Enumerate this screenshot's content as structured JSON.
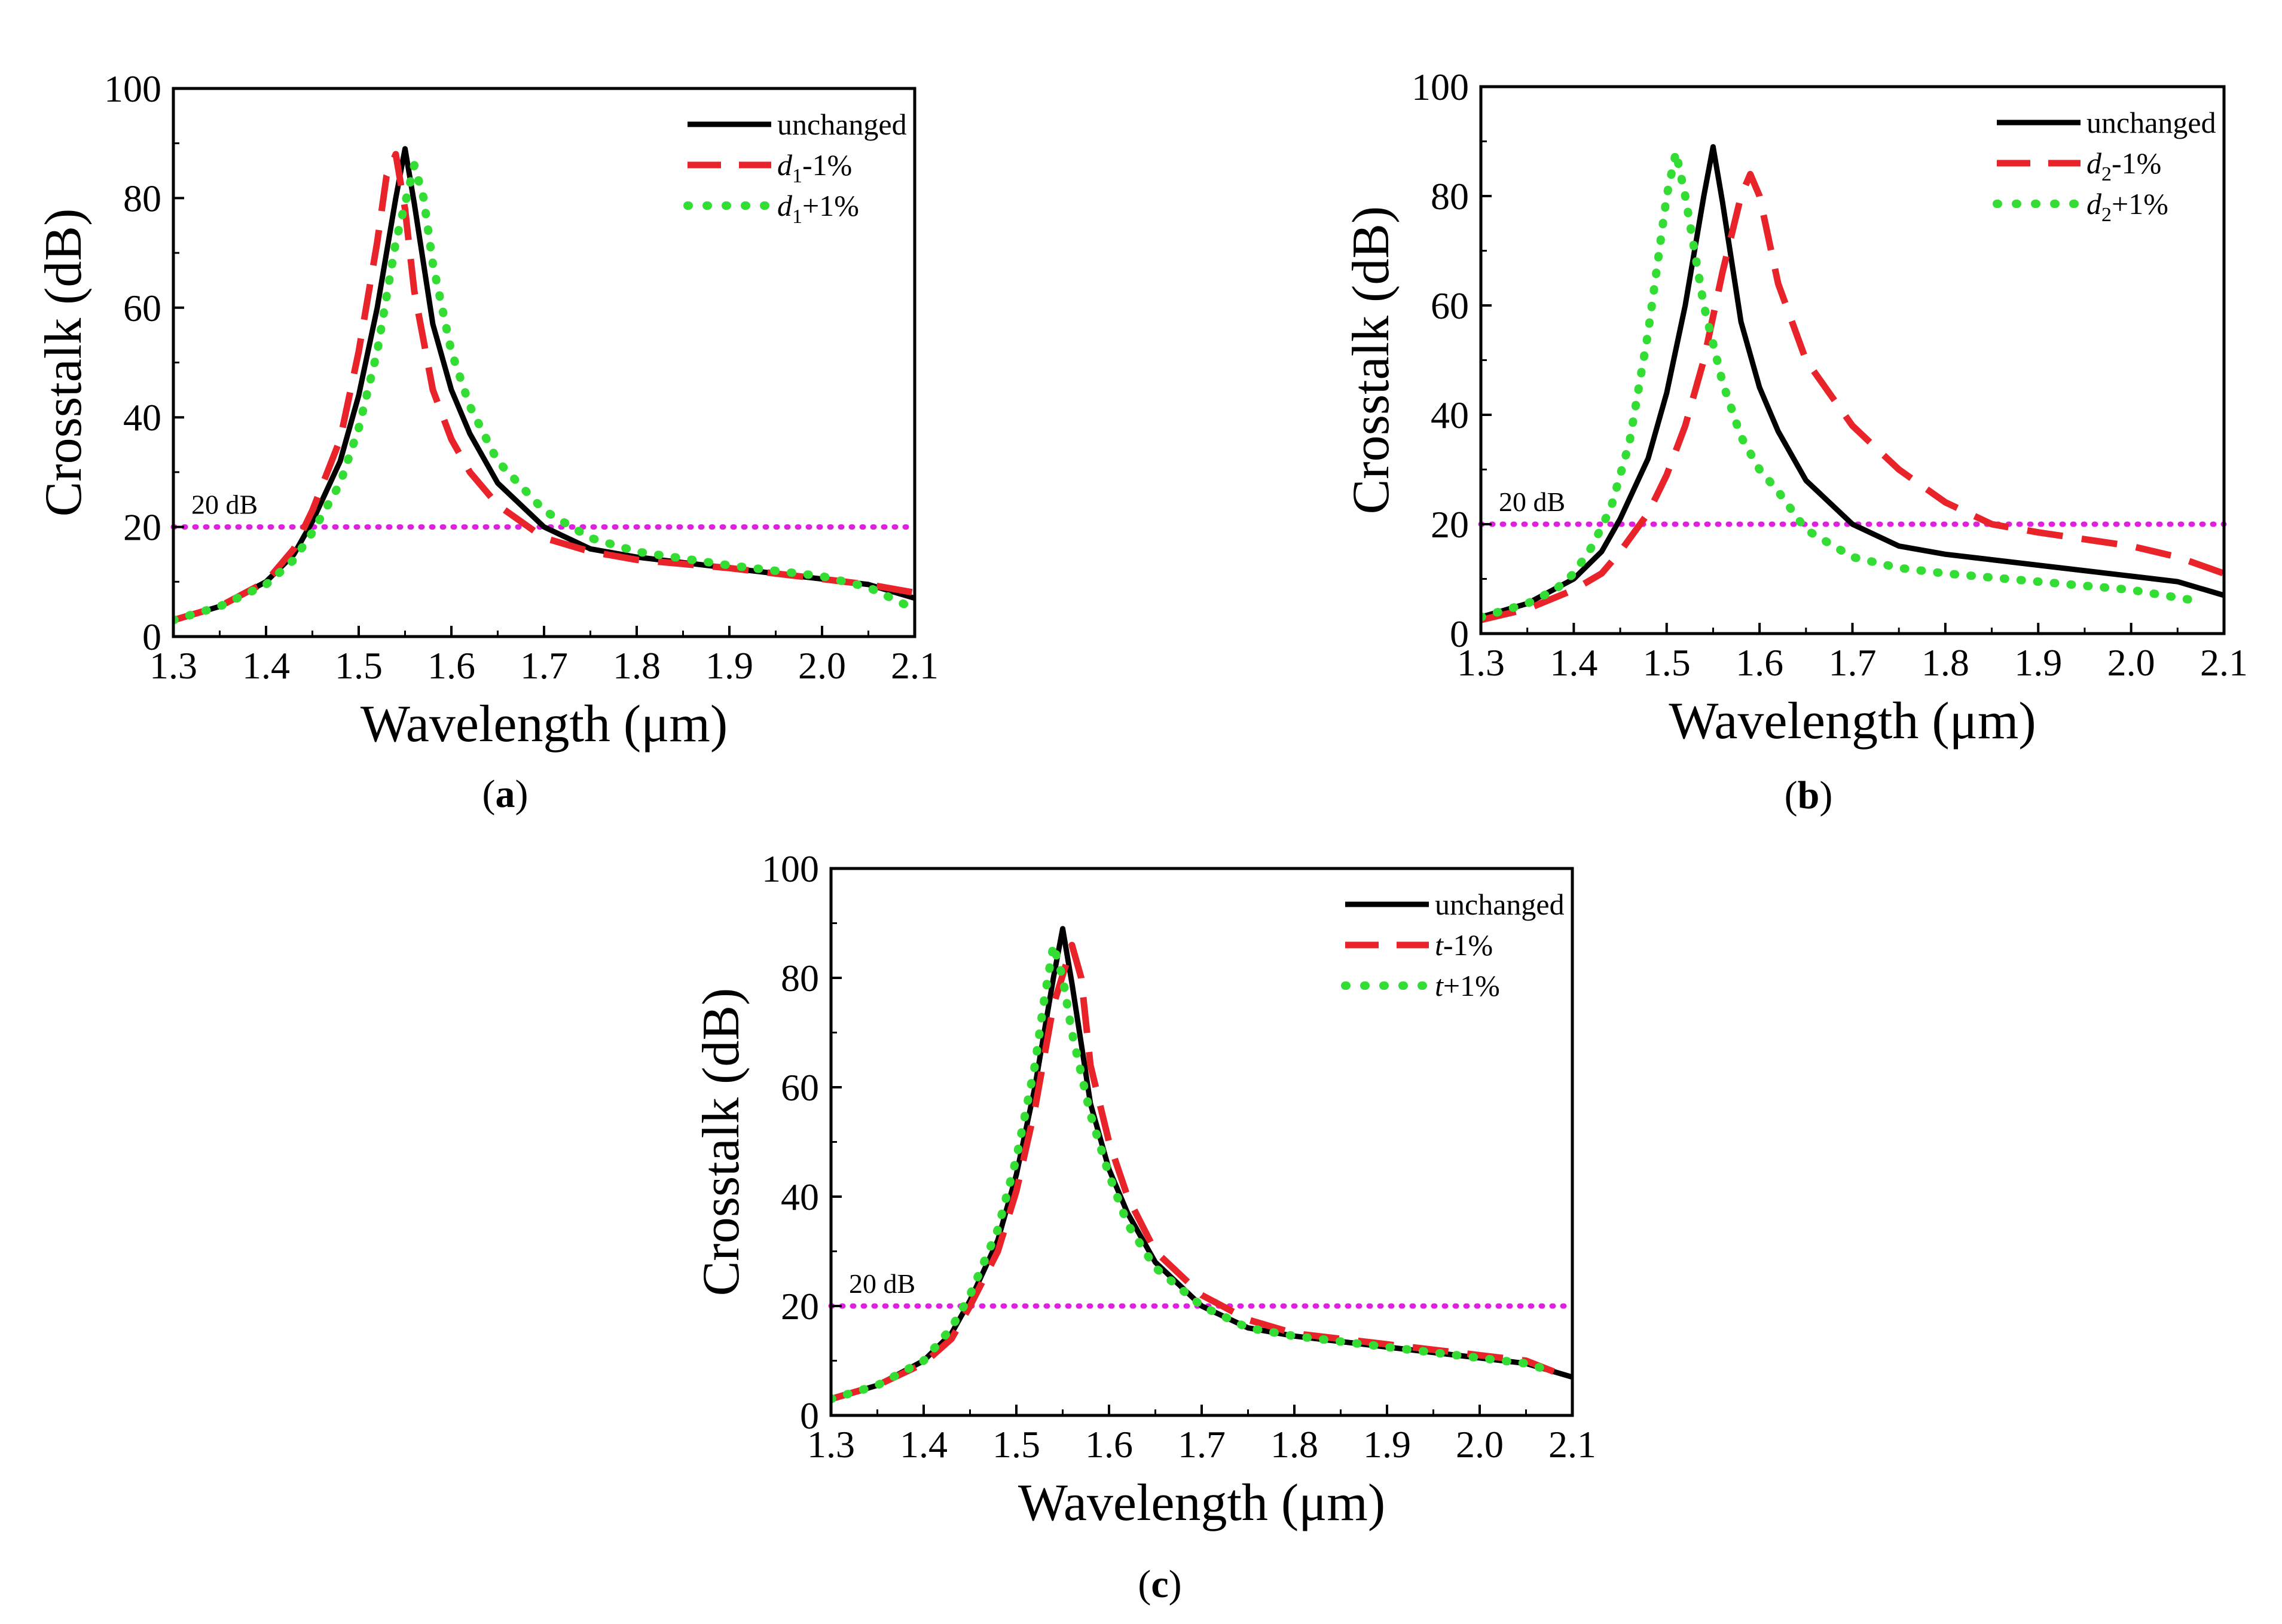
{
  "figure": {
    "panels": [
      {
        "id": "a",
        "label": "a"
      },
      {
        "id": "b",
        "label": "b"
      },
      {
        "id": "c",
        "label": "c"
      }
    ]
  },
  "chart_data": [
    {
      "type": "line",
      "panel": "a",
      "xlabel": "Wavelength (μm)",
      "ylabel": "Crosstalk (dB)",
      "xlim": [
        1.3,
        2.1
      ],
      "ylim": [
        0,
        100
      ],
      "xticks": [
        "1.3",
        "1.4",
        "1.5",
        "1.6",
        "1.7",
        "1.8",
        "1.9",
        "2.0",
        "2.1"
      ],
      "yticks": [
        "0",
        "20",
        "40",
        "60",
        "80",
        "100"
      ],
      "reference_line": {
        "y": 20,
        "label": "20 dB",
        "color": "#e020e0",
        "style": "dotted"
      },
      "legend_position": "top-right",
      "series": [
        {
          "name": "unchanged",
          "legend": {
            "var": "",
            "sub": "",
            "suffix": "unchanged"
          },
          "color": "#000000",
          "style": "solid",
          "x": [
            1.3,
            1.35,
            1.4,
            1.43,
            1.45,
            1.48,
            1.5,
            1.52,
            1.54,
            1.55,
            1.56,
            1.58,
            1.6,
            1.62,
            1.65,
            1.7,
            1.75,
            1.8,
            1.9,
            2.0,
            2.05,
            2.1
          ],
          "y": [
            3,
            5.5,
            10,
            15,
            21,
            32,
            44,
            60,
            80,
            89,
            79,
            57,
            45,
            37,
            28,
            20,
            16,
            14.5,
            12.5,
            10.5,
            9.5,
            7
          ]
        },
        {
          "name": "d1-1%",
          "legend": {
            "var": "d",
            "sub": "1",
            "suffix": "-1%"
          },
          "color": "#e8242a",
          "style": "dashed",
          "x": [
            1.3,
            1.35,
            1.4,
            1.43,
            1.45,
            1.48,
            1.5,
            1.52,
            1.53,
            1.54,
            1.55,
            1.56,
            1.58,
            1.6,
            1.62,
            1.65,
            1.7,
            1.75,
            1.8,
            1.9,
            2.0,
            2.05,
            2.1
          ],
          "y": [
            3,
            5.5,
            10,
            16,
            23,
            36,
            52,
            72,
            84,
            88,
            78,
            63,
            45,
            36,
            30,
            24,
            18,
            15.5,
            14,
            12.5,
            10.5,
            9.5,
            8
          ]
        },
        {
          "name": "d1+1%",
          "legend": {
            "var": "d",
            "sub": "1",
            "suffix": "+1%"
          },
          "color": "#33dd33",
          "style": "dotted",
          "x": [
            1.3,
            1.35,
            1.4,
            1.43,
            1.45,
            1.48,
            1.5,
            1.52,
            1.54,
            1.56,
            1.57,
            1.58,
            1.6,
            1.62,
            1.65,
            1.7,
            1.75,
            1.8,
            1.9,
            2.0,
            2.05,
            2.1
          ],
          "y": [
            3,
            5.5,
            9.5,
            14,
            19,
            28,
            38,
            52,
            72,
            86,
            80,
            68,
            52,
            42,
            32,
            23,
            18,
            15.5,
            13,
            11,
            9,
            5
          ]
        }
      ]
    },
    {
      "type": "line",
      "panel": "b",
      "xlabel": "Wavelength (μm)",
      "ylabel": "Crosstalk (dB)",
      "xlim": [
        1.3,
        2.1
      ],
      "ylim": [
        0,
        100
      ],
      "xticks": [
        "1.3",
        "1.4",
        "1.5",
        "1.6",
        "1.7",
        "1.8",
        "1.9",
        "2.0",
        "2.1"
      ],
      "yticks": [
        "0",
        "20",
        "40",
        "60",
        "80",
        "100"
      ],
      "reference_line": {
        "y": 20,
        "label": "20 dB",
        "color": "#e020e0",
        "style": "dotted"
      },
      "legend_position": "top-right",
      "series": [
        {
          "name": "unchanged",
          "legend": {
            "var": "",
            "sub": "",
            "suffix": "unchanged"
          },
          "color": "#000000",
          "style": "solid",
          "x": [
            1.3,
            1.35,
            1.4,
            1.43,
            1.45,
            1.48,
            1.5,
            1.52,
            1.54,
            1.55,
            1.56,
            1.58,
            1.6,
            1.62,
            1.65,
            1.7,
            1.75,
            1.8,
            1.9,
            2.0,
            2.05,
            2.1
          ],
          "y": [
            3,
            5.5,
            10,
            15,
            21,
            32,
            44,
            60,
            80,
            89,
            79,
            57,
            45,
            37,
            28,
            20,
            16,
            14.5,
            12.5,
            10.5,
            9.5,
            7
          ]
        },
        {
          "name": "d2-1%",
          "legend": {
            "var": "d",
            "sub": "2",
            "suffix": "-1%"
          },
          "color": "#e8242a",
          "style": "dashed",
          "x": [
            1.3,
            1.35,
            1.4,
            1.43,
            1.45,
            1.48,
            1.5,
            1.52,
            1.54,
            1.56,
            1.58,
            1.59,
            1.6,
            1.62,
            1.65,
            1.7,
            1.75,
            1.8,
            1.85,
            1.9,
            2.0,
            2.05,
            2.1
          ],
          "y": [
            2.5,
            4.5,
            8,
            11,
            15,
            22,
            29,
            38,
            50,
            66,
            80,
            84,
            80,
            64,
            50,
            38,
            30,
            24,
            20,
            18.5,
            16,
            14,
            11
          ]
        },
        {
          "name": "d2+1%",
          "legend": {
            "var": "d",
            "sub": "2",
            "suffix": "+1%"
          },
          "color": "#33dd33",
          "style": "dotted",
          "x": [
            1.3,
            1.35,
            1.38,
            1.4,
            1.42,
            1.44,
            1.46,
            1.48,
            1.5,
            1.51,
            1.52,
            1.54,
            1.56,
            1.58,
            1.6,
            1.62,
            1.65,
            1.7,
            1.75,
            1.8,
            1.9,
            2.0,
            2.07
          ],
          "y": [
            3,
            5.5,
            8,
            11,
            16,
            23,
            35,
            55,
            80,
            88,
            80,
            60,
            46,
            36,
            30,
            26,
            19,
            14,
            12,
            11,
            9.5,
            8,
            6
          ]
        }
      ]
    },
    {
      "type": "line",
      "panel": "c",
      "xlabel": "Wavelength (μm)",
      "ylabel": "Crosstalk (dB)",
      "xlim": [
        1.3,
        2.1
      ],
      "ylim": [
        0,
        100
      ],
      "xticks": [
        "1.3",
        "1.4",
        "1.5",
        "1.6",
        "1.7",
        "1.8",
        "1.9",
        "2.0",
        "2.1"
      ],
      "yticks": [
        "0",
        "20",
        "40",
        "60",
        "80",
        "100"
      ],
      "reference_line": {
        "y": 20,
        "label": "20 dB",
        "color": "#e020e0",
        "style": "dotted"
      },
      "legend_position": "top-right",
      "series": [
        {
          "name": "unchanged",
          "legend": {
            "var": "",
            "sub": "",
            "suffix": "unchanged"
          },
          "color": "#000000",
          "style": "solid",
          "x": [
            1.3,
            1.35,
            1.4,
            1.43,
            1.45,
            1.48,
            1.5,
            1.52,
            1.54,
            1.55,
            1.56,
            1.58,
            1.6,
            1.62,
            1.65,
            1.7,
            1.75,
            1.8,
            1.9,
            2.0,
            2.05,
            2.1
          ],
          "y": [
            3,
            5.5,
            10,
            15,
            21,
            32,
            44,
            60,
            80,
            89,
            79,
            57,
            45,
            37,
            28,
            20,
            16,
            14.5,
            12.5,
            10.5,
            9.5,
            7
          ]
        },
        {
          "name": "t-1%",
          "legend": {
            "var": "t",
            "sub": "",
            "suffix": "-1%"
          },
          "color": "#e8242a",
          "style": "dashed",
          "x": [
            1.3,
            1.35,
            1.4,
            1.43,
            1.45,
            1.48,
            1.5,
            1.52,
            1.54,
            1.56,
            1.57,
            1.58,
            1.6,
            1.62,
            1.65,
            1.7,
            1.75,
            1.8,
            1.9,
            2.0,
            2.05,
            2.08
          ],
          "y": [
            3,
            5.5,
            9.5,
            14,
            20,
            30,
            41,
            56,
            75,
            86,
            80,
            64,
            50,
            40,
            30,
            22,
            17.5,
            15,
            13,
            11,
            10,
            8
          ]
        },
        {
          "name": "t+1%",
          "legend": {
            "var": "t",
            "sub": "",
            "suffix": "+1%"
          },
          "color": "#33dd33",
          "style": "dotted",
          "x": [
            1.3,
            1.35,
            1.4,
            1.43,
            1.45,
            1.48,
            1.5,
            1.52,
            1.53,
            1.54,
            1.55,
            1.56,
            1.58,
            1.6,
            1.62,
            1.65,
            1.7,
            1.75,
            1.8,
            1.9,
            2.0,
            2.05,
            2.08
          ],
          "y": [
            3,
            5.5,
            10,
            16,
            22,
            34,
            47,
            64,
            76,
            86,
            80,
            70,
            55,
            44,
            35,
            27,
            20,
            16,
            14.5,
            12.5,
            10.5,
            9.5,
            8
          ]
        }
      ]
    }
  ]
}
